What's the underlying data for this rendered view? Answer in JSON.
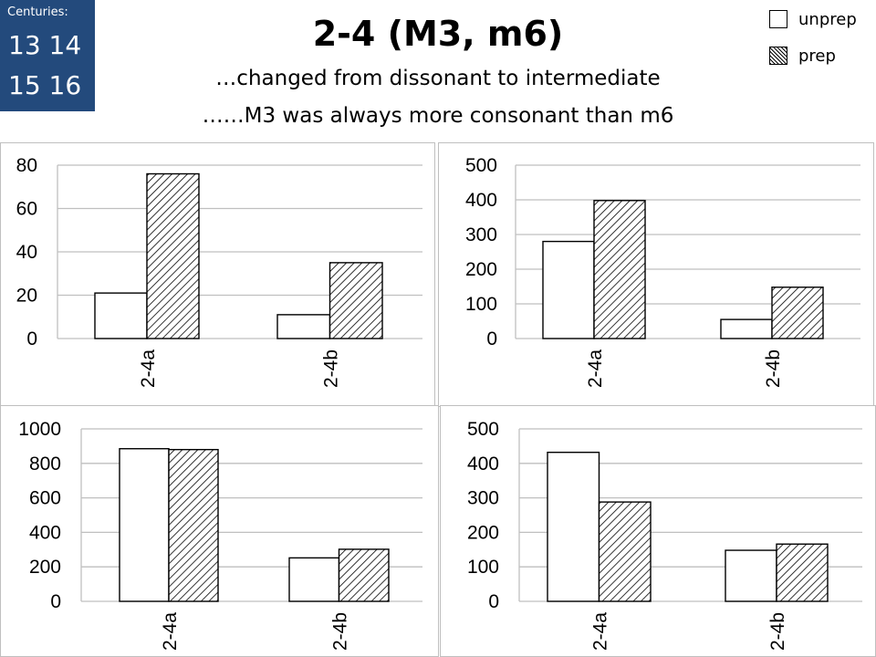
{
  "header": {
    "centuries_label": "Centuries:",
    "centuries_row1": "13 14",
    "centuries_row2": "15 16",
    "title": "2-4 (M3, m6)",
    "subtitle1": "…changed from dissonant to intermediate",
    "subtitle2": "……M3 was always more consonant than m6"
  },
  "legend": {
    "unprep": "unprep",
    "prep": "prep"
  },
  "colors": {
    "centuries_bg": "#234a7c",
    "bar_stroke": "#000000",
    "gridline": "#bfbfbf"
  },
  "chart_data": [
    {
      "type": "bar",
      "categories": [
        "2-4a",
        "2-4b"
      ],
      "series": [
        {
          "name": "unprep",
          "values": [
            21,
            11
          ]
        },
        {
          "name": "prep",
          "values": [
            76,
            35
          ]
        }
      ],
      "yticks": [
        "0",
        "20",
        "40",
        "60",
        "80"
      ],
      "ylim": [
        0,
        80
      ],
      "grid": true
    },
    {
      "type": "bar",
      "categories": [
        "2-4a",
        "2-4b"
      ],
      "series": [
        {
          "name": "unprep",
          "values": [
            280,
            55
          ]
        },
        {
          "name": "prep",
          "values": [
            398,
            148
          ]
        }
      ],
      "yticks": [
        "0",
        "100",
        "200",
        "300",
        "400",
        "500"
      ],
      "ylim": [
        0,
        500
      ],
      "grid": true
    },
    {
      "type": "bar",
      "categories": [
        "2-4a",
        "2-4b"
      ],
      "series": [
        {
          "name": "unprep",
          "values": [
            885,
            252
          ]
        },
        {
          "name": "prep",
          "values": [
            880,
            302
          ]
        }
      ],
      "yticks": [
        "0",
        "200",
        "400",
        "600",
        "800",
        "1000"
      ],
      "ylim": [
        0,
        1000
      ],
      "grid": true
    },
    {
      "type": "bar",
      "categories": [
        "2-4a",
        "2-4b"
      ],
      "series": [
        {
          "name": "unprep",
          "values": [
            432,
            148
          ]
        },
        {
          "name": "prep",
          "values": [
            288,
            166
          ]
        }
      ],
      "yticks": [
        "0",
        "100",
        "200",
        "300",
        "400",
        "500"
      ],
      "ylim": [
        0,
        500
      ],
      "grid": true
    }
  ]
}
